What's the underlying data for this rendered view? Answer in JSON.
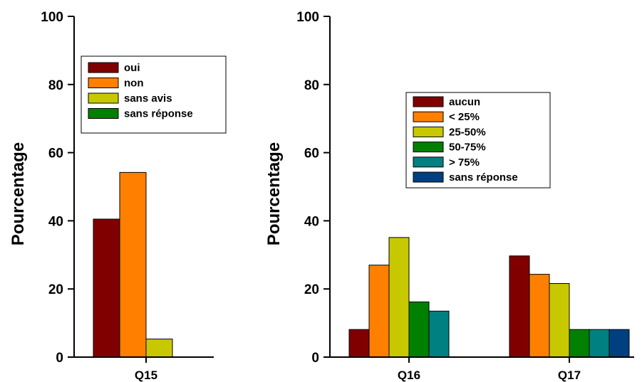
{
  "chart_data": [
    {
      "type": "bar",
      "ylabel": "Pourcentage",
      "ylim": [
        0,
        100
      ],
      "yticks": [
        "0",
        "20",
        "40",
        "60",
        "80",
        "100"
      ],
      "categories": [
        "Q15"
      ],
      "legend_placement": "top-left",
      "series": [
        {
          "name": "oui",
          "color": "#800000",
          "values": [
            40.5
          ]
        },
        {
          "name": "non",
          "color": "#ff8000",
          "values": [
            54.2
          ]
        },
        {
          "name": "sans avis",
          "color": "#c8c800",
          "values": [
            5.3
          ]
        },
        {
          "name": "sans réponse",
          "color": "#008000",
          "values": [
            0
          ]
        }
      ]
    },
    {
      "type": "bar",
      "ylabel": "Pourcentage",
      "ylim": [
        0,
        100
      ],
      "yticks": [
        "0",
        "20",
        "40",
        "60",
        "80",
        "100"
      ],
      "categories": [
        "Q16",
        "Q17"
      ],
      "legend_placement": "top-center",
      "series": [
        {
          "name": "aucun",
          "color": "#800000",
          "values": [
            8.1,
            29.7
          ]
        },
        {
          "name": "< 25%",
          "color": "#ff8000",
          "values": [
            27.0,
            24.3
          ]
        },
        {
          "name": "25-50%",
          "color": "#c8c800",
          "values": [
            35.1,
            21.6
          ]
        },
        {
          "name": "50-75%",
          "color": "#008000",
          "values": [
            16.2,
            8.1
          ]
        },
        {
          "name": "> 75%",
          "color": "#008080",
          "values": [
            13.5,
            8.1
          ]
        },
        {
          "name": "sans réponse",
          "color": "#004080",
          "values": [
            0,
            8.1
          ]
        }
      ]
    }
  ]
}
